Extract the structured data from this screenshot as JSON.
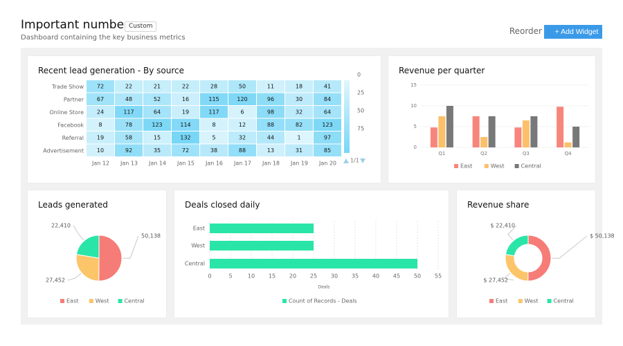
{
  "header": {
    "title": "Important numbers",
    "badge": "Custom",
    "subtitle": "Dashboard containing the key business metrics",
    "reorder_label": "Reorder",
    "add_widget_label": "+ Add Widget"
  },
  "widgets": {
    "heatmap": {
      "title": "Recent lead generation - By source",
      "rows": [
        "Trade Show",
        "Partner",
        "Online Store",
        "Facebook",
        "Referral",
        "Advertisement"
      ],
      "columns": [
        "Jan 12",
        "Jan 13",
        "Jan 14",
        "Jan 15",
        "Jan 16",
        "Jan 17",
        "Jan 18",
        "Jan 19",
        "Jan 20"
      ],
      "values": [
        [
          72,
          22,
          21,
          22,
          28,
          50,
          11,
          18,
          41
        ],
        [
          67,
          48,
          52,
          16,
          115,
          120,
          96,
          30,
          84
        ],
        [
          24,
          117,
          64,
          19,
          117,
          6,
          98,
          32,
          64
        ],
        [
          8,
          78,
          123,
          114,
          8,
          12,
          88,
          82,
          123
        ],
        [
          19,
          58,
          15,
          132,
          5,
          32,
          44,
          1,
          97
        ],
        [
          10,
          92,
          35,
          72,
          38,
          88,
          13,
          31,
          85
        ]
      ],
      "legend_ticks": [
        "0",
        "25",
        "50",
        "75"
      ],
      "pager": "1/1"
    },
    "revenue_quarter": {
      "title": "Revenue per quarter",
      "categories": [
        "Q1",
        "Q2",
        "Q3",
        "Q4"
      ],
      "y_ticks": [
        "0",
        "5",
        "10",
        "15"
      ],
      "ylim": [
        0,
        15
      ],
      "series": [
        {
          "name": "East",
          "color": "#f8857b",
          "values": [
            4.8,
            7.5,
            4.8,
            9.8
          ]
        },
        {
          "name": "West",
          "color": "#fcc06a",
          "values": [
            7.5,
            2.5,
            6.5,
            1.2
          ]
        },
        {
          "name": "Central",
          "color": "#787878",
          "values": [
            10,
            7.5,
            7.5,
            5
          ]
        }
      ]
    },
    "leads_generated": {
      "title": "Leads generated",
      "slices": [
        {
          "name": "East",
          "value": 50138,
          "label": "50,138",
          "color": "#f67c77"
        },
        {
          "name": "West",
          "value": 27452,
          "label": "27,452",
          "color": "#fcc56a"
        },
        {
          "name": "Central",
          "value": 22410,
          "label": "22,410",
          "color": "#2ae5a8"
        }
      ]
    },
    "deals_closed": {
      "title": "Deals closed daily",
      "categories": [
        "East",
        "West",
        "Central"
      ],
      "values": [
        25,
        25,
        50
      ],
      "x_ticks": [
        "0",
        "5",
        "10",
        "15",
        "20",
        "25",
        "30",
        "35",
        "40",
        "45",
        "50",
        "55"
      ],
      "xlim": [
        0,
        55
      ],
      "xlabel": "Deals",
      "legend": "Count of Records - Deals",
      "color": "#2ae5a8"
    },
    "revenue_share": {
      "title": "Revenue share",
      "slices": [
        {
          "name": "East",
          "value": 50138,
          "label": "$ 50,138",
          "color": "#f67c77"
        },
        {
          "name": "West",
          "value": 27452,
          "label": "$ 27,452",
          "color": "#fcc56a"
        },
        {
          "name": "Central",
          "value": 22410,
          "label": "$ 22,410",
          "color": "#2ae5a8"
        }
      ]
    }
  }
}
